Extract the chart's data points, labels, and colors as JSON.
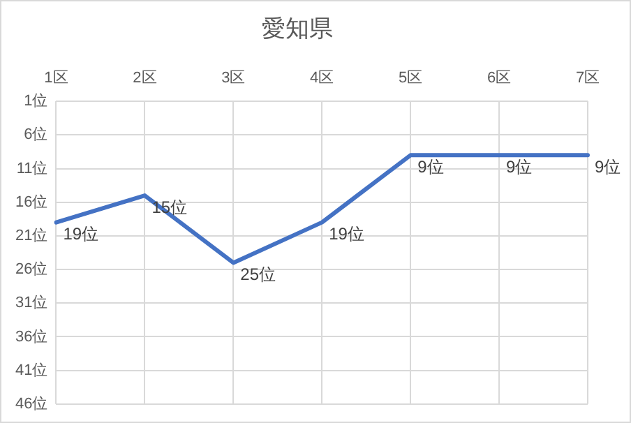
{
  "chart_data": {
    "type": "line",
    "title": "愛知県",
    "categories": [
      "1区",
      "2区",
      "3区",
      "4区",
      "5区",
      "6区",
      "7区"
    ],
    "series": [
      {
        "color": "#4472c4",
        "values": [
          19,
          15,
          25,
          19,
          9,
          9,
          9
        ],
        "value_labels": [
          "19位",
          "15位",
          "25位",
          "19位",
          "9位",
          "9位",
          "9位"
        ]
      }
    ],
    "ylim": [
      46,
      1
    ],
    "yticks": [
      {
        "value": 1,
        "label": "1位"
      },
      {
        "value": 6,
        "label": "6位"
      },
      {
        "value": 11,
        "label": "11位"
      },
      {
        "value": 16,
        "label": "16位"
      },
      {
        "value": 21,
        "label": "21位"
      },
      {
        "value": 26,
        "label": "26位"
      },
      {
        "value": 31,
        "label": "31位"
      },
      {
        "value": 36,
        "label": "36位"
      },
      {
        "value": 41,
        "label": "41位"
      },
      {
        "value": 46,
        "label": "46位"
      }
    ],
    "grid": true,
    "marker": "none",
    "line_style": "solid"
  }
}
